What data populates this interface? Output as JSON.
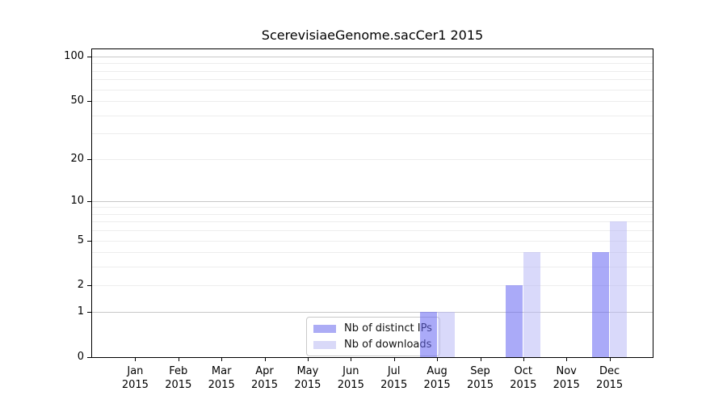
{
  "chart_data": {
    "type": "bar",
    "title": "ScerevisiaeGenome.sacCer1 2015",
    "categories": [
      "Jan 2015",
      "Feb 2015",
      "Mar 2015",
      "Apr 2015",
      "May 2015",
      "Jun 2015",
      "Jul 2015",
      "Aug 2015",
      "Sep 2015",
      "Oct 2015",
      "Nov 2015",
      "Dec 2015"
    ],
    "series": [
      {
        "name": "Nb of distinct IPs",
        "values": [
          0,
          0,
          0,
          0,
          0,
          0,
          0,
          1,
          0,
          2,
          0,
          4
        ],
        "swatch_color": "#acacf5",
        "bar_fill": "rgba(104,104,242,0.56)"
      },
      {
        "name": "Nb of downloads",
        "values": [
          0,
          0,
          0,
          0,
          0,
          0,
          0,
          1,
          0,
          4,
          0,
          7
        ],
        "swatch_color": "#d9d9f8",
        "bar_fill": "rgba(182,182,246,0.52)"
      }
    ],
    "xlabel": "",
    "ylabel": "",
    "yticks": [
      0,
      1,
      2,
      5,
      10,
      20,
      50,
      100
    ],
    "ylim": [
      0,
      100
    ],
    "yscale": "log1p",
    "grid": true,
    "legend_position": "lower center inside plot",
    "colors": {
      "axis": "#000000",
      "major_grid": "#c8c8c8",
      "minor_grid": "#ededed",
      "background": "#ffffff"
    }
  }
}
